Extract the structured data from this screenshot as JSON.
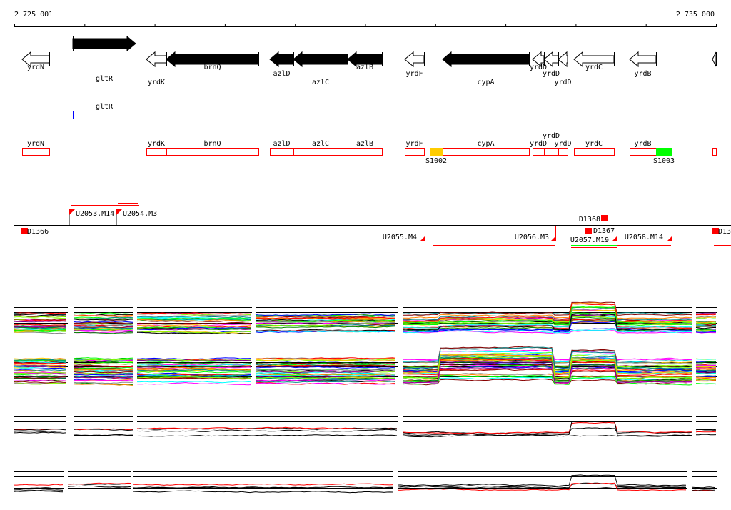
{
  "ruler": {
    "start_label": "2 725 001",
    "end_label": "2 735 000"
  },
  "colors": {
    "red": "#ff0000",
    "blue": "#0000ff",
    "orange": "#ffcc00",
    "green": "#00ff00"
  },
  "genes": [
    {
      "name": "yrdN",
      "strand": "-",
      "filled": false
    },
    {
      "name": "gltR",
      "strand": "+",
      "filled": true
    },
    {
      "name": "yrdK",
      "strand": "-",
      "filled": false
    },
    {
      "name": "brnQ",
      "strand": "-",
      "filled": true
    },
    {
      "name": "azlD",
      "strand": "-",
      "filled": true
    },
    {
      "name": "azlC",
      "strand": "-",
      "filled": true
    },
    {
      "name": "azlB",
      "strand": "-",
      "filled": true
    },
    {
      "name": "yrdF",
      "strand": "-",
      "filled": false
    },
    {
      "name": "cypA",
      "strand": "-",
      "filled": true
    },
    {
      "name": "yrdD",
      "strand": "-",
      "filled": false
    },
    {
      "name": "yrdD",
      "strand": "-",
      "filled": false
    },
    {
      "name": "yrdD",
      "strand": "-",
      "filled": false
    },
    {
      "name": "yrdC",
      "strand": "-",
      "filled": false
    },
    {
      "name": "yrdB",
      "strand": "-",
      "filled": false
    },
    {
      "name": "",
      "strand": "-",
      "filled": false
    }
  ],
  "regulator_box": {
    "name": "gltR"
  },
  "transcripts": [
    {
      "name": "yrdN",
      "color": "#ffffff"
    },
    {
      "name": "yrdK",
      "color": "#ffffff"
    },
    {
      "name": "brnQ",
      "color": "#ffffff"
    },
    {
      "name": "azlD",
      "color": "#ffffff"
    },
    {
      "name": "azlC",
      "color": "#ffffff"
    },
    {
      "name": "azlB",
      "color": "#ffffff"
    },
    {
      "name": "yrdF",
      "color": "#ffffff"
    },
    {
      "name": "S1002",
      "color": "#ffcc00"
    },
    {
      "name": "cypA",
      "color": "#ffffff"
    },
    {
      "name": "yrdD",
      "color": "#ffffff"
    },
    {
      "name": "yrdD",
      "color": "#ffffff"
    },
    {
      "name": "yrdD",
      "color": "#ffffff"
    },
    {
      "name": "yrdC",
      "color": "#ffffff"
    },
    {
      "name": "yrdB",
      "color": "#ffffff"
    },
    {
      "name": "S1003",
      "color": "#00ff00"
    },
    {
      "name": "",
      "color": "#ffffff"
    }
  ],
  "features": [
    {
      "name": "U2053.M14"
    },
    {
      "name": "U2054.M3"
    },
    {
      "name": "D1366"
    },
    {
      "name": "D1368"
    },
    {
      "name": "U2055.M4"
    },
    {
      "name": "U2056.M3"
    },
    {
      "name": "D1367"
    },
    {
      "name": "U2057.M19"
    },
    {
      "name": "U2058.M14"
    },
    {
      "name": "D13"
    }
  ]
}
